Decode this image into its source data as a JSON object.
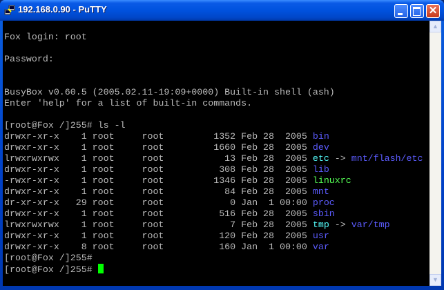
{
  "window": {
    "title": "192.168.0.90 - PuTTY",
    "icon": "putty-icon"
  },
  "colors": {
    "text": "#bbbbbb",
    "directory": "#5c5cff",
    "symlink": "#55ffff",
    "executable": "#55ff55",
    "cursor": "#00ff00"
  },
  "terminal": {
    "lines": [
      [],
      [
        {
          "t": "Fox login: root"
        }
      ],
      [],
      [
        {
          "t": "Password:"
        }
      ],
      [],
      [],
      [
        {
          "t": "BusyBox v0.60.5 (2005.02.11-19:09+0000) Built-in shell (ash)"
        }
      ],
      [
        {
          "t": "Enter 'help' for a list of built-in commands."
        }
      ],
      [],
      [
        {
          "t": "[root@Fox /]255# ls -l"
        }
      ],
      [
        {
          "t": "drwxr-xr-x    1 root     root         1352 Feb 28  2005 "
        },
        {
          "t": "bin",
          "c": "directory"
        }
      ],
      [
        {
          "t": "drwxr-xr-x    1 root     root         1660 Feb 28  2005 "
        },
        {
          "t": "dev",
          "c": "directory"
        }
      ],
      [
        {
          "t": "lrwxrwxrwx    1 root     root           13 Feb 28  2005 "
        },
        {
          "t": "etc",
          "c": "symlink"
        },
        {
          "t": " -> "
        },
        {
          "t": "mnt/flash/etc",
          "c": "directory"
        }
      ],
      [
        {
          "t": "drwxr-xr-x    1 root     root          308 Feb 28  2005 "
        },
        {
          "t": "lib",
          "c": "directory"
        }
      ],
      [
        {
          "t": "-rwxr-xr-x    1 root     root         1346 Feb 28  2005 "
        },
        {
          "t": "linuxrc",
          "c": "executable"
        }
      ],
      [
        {
          "t": "drwxr-xr-x    1 root     root           84 Feb 28  2005 "
        },
        {
          "t": "mnt",
          "c": "directory"
        }
      ],
      [
        {
          "t": "dr-xr-xr-x   29 root     root            0 Jan  1 00:00 "
        },
        {
          "t": "proc",
          "c": "directory"
        }
      ],
      [
        {
          "t": "drwxr-xr-x    1 root     root          516 Feb 28  2005 "
        },
        {
          "t": "sbin",
          "c": "directory"
        }
      ],
      [
        {
          "t": "lrwxrwxrwx    1 root     root            7 Feb 28  2005 "
        },
        {
          "t": "tmp",
          "c": "symlink"
        },
        {
          "t": " -> "
        },
        {
          "t": "var/tmp",
          "c": "directory"
        }
      ],
      [
        {
          "t": "drwxr-xr-x    1 root     root          120 Feb 28  2005 "
        },
        {
          "t": "usr",
          "c": "directory"
        }
      ],
      [
        {
          "t": "drwxr-xr-x    8 root     root          160 Jan  1 00:00 "
        },
        {
          "t": "var",
          "c": "directory"
        }
      ],
      [
        {
          "t": "[root@Fox /]255# "
        }
      ],
      [
        {
          "t": "[root@Fox /]255# "
        },
        {
          "cursor": true
        }
      ]
    ]
  }
}
